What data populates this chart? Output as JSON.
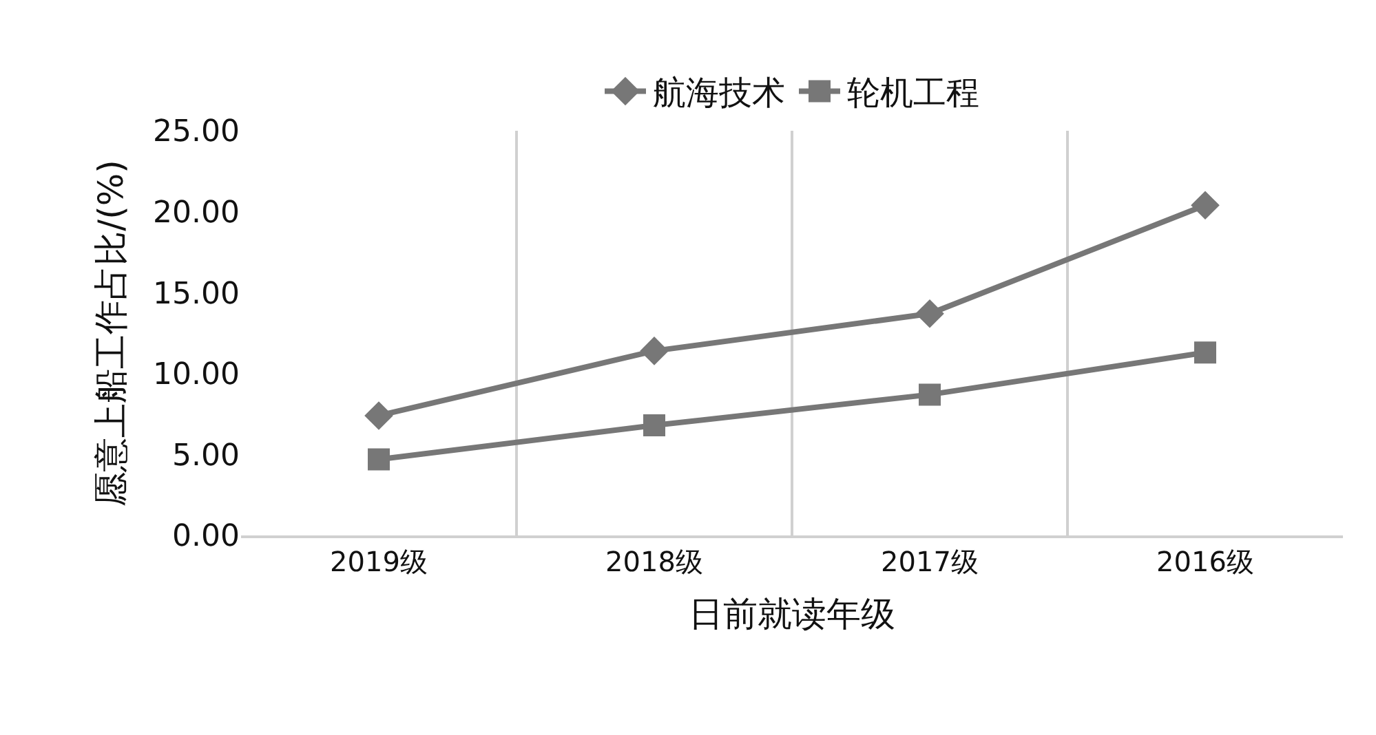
{
  "chart_data": {
    "type": "line",
    "xlabel": "日前就读年级",
    "ylabel": "愿意上船工作占比/(%)",
    "categories": [
      "2019级",
      "2018级",
      "2017级",
      "2016级"
    ],
    "series": [
      {
        "name": "航海技术",
        "color": "#777777",
        "marker": "diamond",
        "values": [
          7.4,
          11.4,
          13.7,
          20.4
        ]
      },
      {
        "name": "轮机工程",
        "color": "#777777",
        "marker": "square",
        "values": [
          4.7,
          6.8,
          8.7,
          11.3
        ]
      }
    ],
    "ylim": [
      0,
      25
    ],
    "yticks": [
      {
        "value": 0,
        "label": "0.00"
      },
      {
        "value": 5,
        "label": "5.00"
      },
      {
        "value": 10,
        "label": "10.00"
      },
      {
        "value": 15,
        "label": "15.00"
      },
      {
        "value": 20,
        "label": "20.00"
      },
      {
        "value": 25,
        "label": "25.00"
      }
    ],
    "grid": "x",
    "legend": "top",
    "line_style": "solid"
  }
}
